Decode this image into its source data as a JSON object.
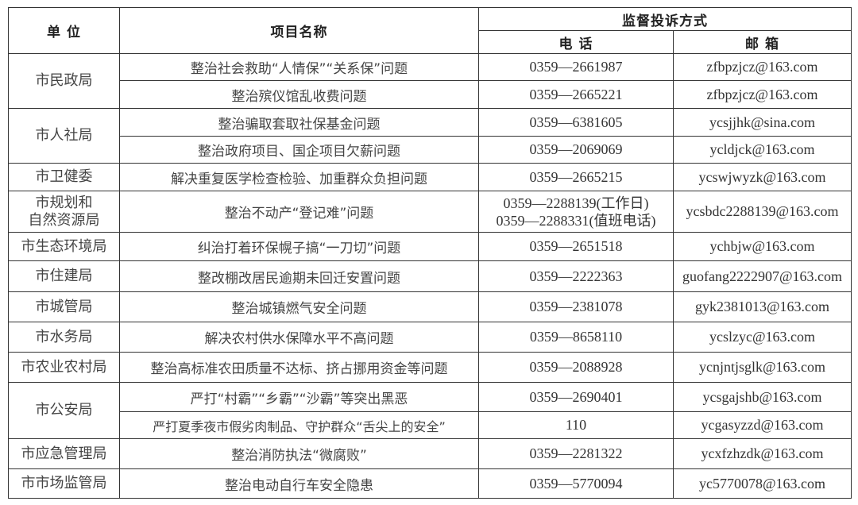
{
  "header": {
    "unit": "单 位",
    "project": "项目名称",
    "contact": "监督投诉方式",
    "phone": "电 话",
    "email": "邮 箱"
  },
  "groups": [
    {
      "unit": "市民政局",
      "rows": [
        {
          "project": "整治社会救助“人情保”“关系保”问题",
          "phone": "0359—2661987",
          "email": "zfbpzjcz@163.com"
        },
        {
          "project": "整治殡仪馆乱收费问题",
          "phone": "0359—2665221",
          "email": "zfbpzjcz@163.com"
        }
      ]
    },
    {
      "unit": "市人社局",
      "rows": [
        {
          "project": "整治骗取套取社保基金问题",
          "phone": "0359—6381605",
          "email": "ycsjjhk@sina.com"
        },
        {
          "project": "整治政府项目、国企项目欠薪问题",
          "phone": "0359—2069069",
          "email": "ycldjck@163.com"
        }
      ]
    },
    {
      "unit": "市卫健委",
      "rows": [
        {
          "project": "解决重复医学检查检验、加重群众负担问题",
          "phone": "0359—2665215",
          "email": "ycswjwyzk@163.com"
        }
      ]
    },
    {
      "unit": "市规划和自然资源局",
      "unit_line1": "市规划和",
      "unit_line2": "自然资源局",
      "rows": [
        {
          "project": "整治不动产“登记难”问题",
          "phone": "0359—2288139(工作日)",
          "phone2": "0359—2288331(值班电话)",
          "email": "ycsbdc2288139@163.com"
        }
      ]
    },
    {
      "unit": "市生态环境局",
      "rows": [
        {
          "project": "纠治打着环保幌子搞“一刀切”问题",
          "phone": "0359—2651518",
          "email": "ychbjw@163.com"
        }
      ]
    },
    {
      "unit": "市住建局",
      "rows": [
        {
          "project": "整改棚改居民逾期未回迁安置问题",
          "phone": "0359—2222363",
          "email": "guofang2222907@163.com"
        }
      ]
    },
    {
      "unit": "市城管局",
      "rows": [
        {
          "project": "整治城镇燃气安全问题",
          "phone": "0359—2381078",
          "email": "gyk2381013@163.com"
        }
      ]
    },
    {
      "unit": "市水务局",
      "rows": [
        {
          "project": "解决农村供水保障水平不高问题",
          "phone": "0359—8658110",
          "email": "ycslzyc@163.com"
        }
      ]
    },
    {
      "unit": "市农业农村局",
      "rows": [
        {
          "project": "整治高标准农田质量不达标、挤占挪用资金等问题",
          "phone": "0359—2088928",
          "email": "ycnjntjsglk@163.com"
        }
      ]
    },
    {
      "unit": "市公安局",
      "rows": [
        {
          "project": "严打“村霸”“乡霸”“沙霸”等突出黑恶",
          "phone": "0359—2690401",
          "email": "ycsgajshb@163.com"
        },
        {
          "project": "严打夏季夜市假劣肉制品、守护群众“舌尖上的安全”",
          "phone": "110",
          "email": "ycgasyzzd@163.com"
        }
      ]
    },
    {
      "unit": "市应急管理局",
      "rows": [
        {
          "project": "整治消防执法“微腐败”",
          "phone": "0359—2281322",
          "email": "ycxfzhzdk@163.com"
        }
      ]
    },
    {
      "unit": "市市场监管局",
      "rows": [
        {
          "project": "整治电动自行车安全隐患",
          "phone": "0359—5770094",
          "email": "yc5770078@163.com"
        }
      ]
    }
  ]
}
